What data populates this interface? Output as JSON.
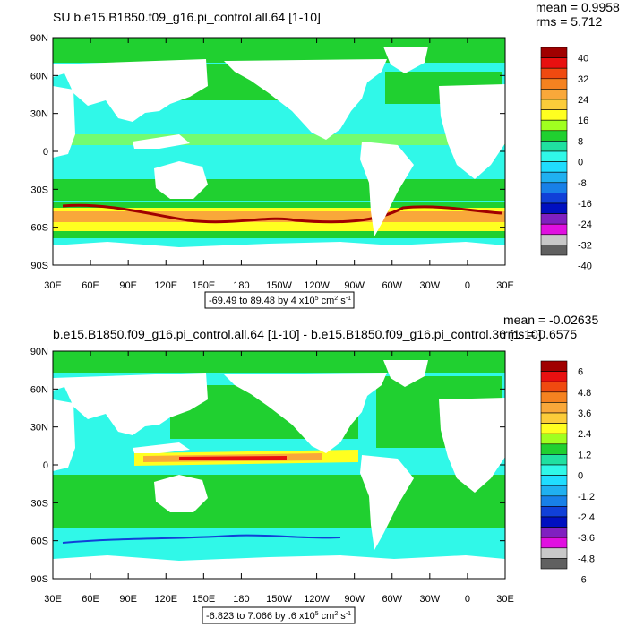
{
  "chart_data": [
    {
      "type": "heatmap",
      "title": "SU b.e15.B1850.f09_g16.pi_control.all.64 [1-10]",
      "stats": {
        "mean": "mean = 0.9958",
        "rms": "rms = 5.712"
      },
      "range_label": "-69.49 to 89.48 by 4 x10",
      "range_exp": "5",
      "range_units": " cm",
      "range_units_exp": "2",
      "range_tail": " s",
      "range_tail_exp": "-1",
      "xlim": [
        30,
        390
      ],
      "ylim": [
        -90,
        90
      ],
      "lat_ticks": [
        "90N",
        "60N",
        "30N",
        "0",
        "30S",
        "60S",
        "90S"
      ],
      "lon_ticks": [
        "30E",
        "60E",
        "90E",
        "120E",
        "150E",
        "180",
        "150W",
        "120W",
        "90W",
        "60W",
        "30W",
        "0",
        "30E"
      ],
      "colorbar": {
        "labels": [
          "40",
          "32",
          "24",
          "16",
          "8",
          "0",
          "-8",
          "-16",
          "-24",
          "-32",
          "-40"
        ],
        "colors": [
          "#a00000",
          "#e81010",
          "#f04a10",
          "#f58220",
          "#f9a83a",
          "#fbcc3a",
          "#ffff20",
          "#a0ff20",
          "#20d030",
          "#20e0a0",
          "#30f8e8",
          "#20ddff",
          "#20b0f0",
          "#1880e8",
          "#1040d8",
          "#0010c0",
          "#8020c0",
          "#e010e0",
          "#c8c8c8",
          "#606060"
        ]
      }
    },
    {
      "type": "heatmap",
      "title": "b.e15.B1850.f09_g16.pi_control.all.64 [1-10] - b.e15.B1850.f09_g16.pi_control.36 [1-10]",
      "stats": {
        "mean": "mean = -0.02635",
        "rms": "rms = 0.6575"
      },
      "range_label": "-6.823 to 7.066 by .6 x10",
      "range_exp": "5",
      "range_units": " cm",
      "range_units_exp": "2",
      "range_tail": " s",
      "range_tail_exp": "-1",
      "xlim": [
        30,
        390
      ],
      "ylim": [
        -90,
        90
      ],
      "lat_ticks": [
        "90N",
        "60N",
        "30N",
        "0",
        "30S",
        "60S",
        "90S"
      ],
      "lon_ticks": [
        "30E",
        "60E",
        "90E",
        "120E",
        "150E",
        "180",
        "150W",
        "120W",
        "90W",
        "60W",
        "30W",
        "0",
        "30E"
      ],
      "colorbar": {
        "labels": [
          "6",
          "4.8",
          "3.6",
          "2.4",
          "1.2",
          "0",
          "-1.2",
          "-2.4",
          "-3.6",
          "-4.8",
          "-6"
        ],
        "colors": [
          "#a00000",
          "#e81010",
          "#f04a10",
          "#f58220",
          "#f9a83a",
          "#fbcc3a",
          "#ffff20",
          "#a0ff20",
          "#20d030",
          "#20e0a0",
          "#30f8e8",
          "#20ddff",
          "#20b0f0",
          "#1880e8",
          "#1040d8",
          "#0010c0",
          "#8020c0",
          "#e010e0",
          "#c8c8c8",
          "#606060"
        ]
      }
    }
  ]
}
